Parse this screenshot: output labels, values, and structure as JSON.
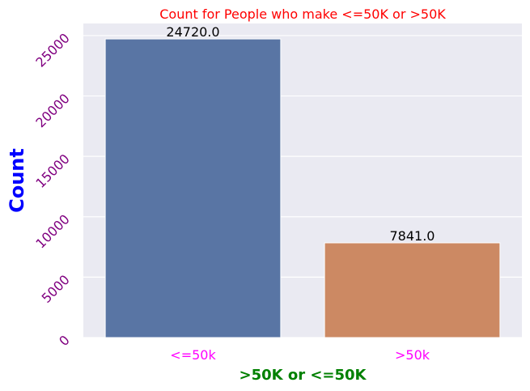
{
  "chart_data": {
    "type": "bar",
    "title": "Count for People who make <=50K or >50K",
    "xlabel": ">50K or <=50K",
    "ylabel": "Count",
    "categories": [
      "<=50k",
      ">50k"
    ],
    "values": [
      24720,
      7841
    ],
    "value_labels": [
      "24720.0",
      "7841.0"
    ],
    "ylim": [
      0,
      26000
    ],
    "yticks": [
      0,
      5000,
      10000,
      15000,
      20000,
      25000
    ],
    "ytick_labels": [
      "0",
      "5000",
      "10000",
      "15000",
      "20000",
      "25000"
    ],
    "grid": true,
    "colors": {
      "bars": [
        "#5975a4",
        "#cc8963"
      ],
      "background": "#eaeaf2",
      "grid": "#ffffff",
      "title": "#ff0000",
      "ylabel": "#0000ff",
      "xlabel": "#008000",
      "yticks": "#800080",
      "xticks": "#ff00ff",
      "value_labels": "#000000"
    }
  }
}
